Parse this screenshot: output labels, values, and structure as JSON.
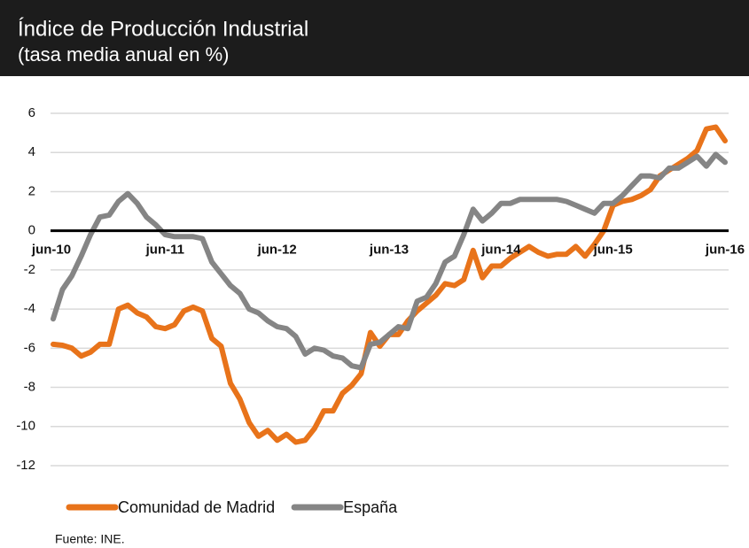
{
  "chart_data": {
    "type": "line",
    "title": "Índice de Producción Industrial",
    "subtitle": "(tasa media anual en %)",
    "source": "Fuente: INE.",
    "categories": [
      "jun-10",
      null,
      null,
      null,
      null,
      null,
      null,
      null,
      null,
      null,
      null,
      null,
      "jun-11",
      null,
      null,
      null,
      null,
      null,
      null,
      null,
      null,
      null,
      null,
      null,
      "jun-12",
      null,
      null,
      null,
      null,
      null,
      null,
      null,
      null,
      null,
      null,
      null,
      "jun-13",
      null,
      null,
      null,
      null,
      null,
      null,
      null,
      null,
      null,
      null,
      null,
      "jun-14",
      null,
      null,
      null,
      null,
      null,
      null,
      null,
      null,
      null,
      null,
      null,
      "jun-15",
      null,
      null,
      null,
      null,
      null,
      null,
      null,
      null,
      null,
      null,
      null,
      "jun-16"
    ],
    "series": [
      {
        "name": "Comunidad de Madrid",
        "color": "#e8731a",
        "values": [
          -5.8,
          -5.85,
          -6.0,
          -6.4,
          -6.2,
          -5.8,
          -5.8,
          -4.0,
          -3.8,
          -4.2,
          -4.4,
          -4.9,
          -5.0,
          -4.8,
          -4.1,
          -3.9,
          -4.1,
          -5.5,
          -5.9,
          -7.8,
          -8.6,
          -9.8,
          -10.5,
          -10.2,
          -10.7,
          -10.4,
          -10.8,
          -10.7,
          -10.1,
          -9.2,
          -9.2,
          -8.3,
          -7.9,
          -7.3,
          -5.2,
          -5.9,
          -5.3,
          -5.3,
          -4.6,
          -4.1,
          -3.7,
          -3.3,
          -2.7,
          -2.8,
          -2.5,
          -1.0,
          -2.4,
          -1.8,
          -1.8,
          -1.4,
          -1.1,
          -0.8,
          -1.1,
          -1.3,
          -1.2,
          -1.2,
          -0.8,
          -1.3,
          -0.7,
          0.0,
          1.3,
          1.5,
          1.6,
          1.8,
          2.1,
          2.8,
          3.1,
          3.4,
          3.7,
          4.1,
          5.2,
          5.3,
          4.6
        ]
      },
      {
        "name": "España",
        "color": "#858585",
        "values": [
          -4.5,
          -3.0,
          -2.3,
          -1.3,
          -0.2,
          0.7,
          0.8,
          1.5,
          1.9,
          1.4,
          0.7,
          0.3,
          -0.2,
          -0.3,
          -0.3,
          -0.3,
          -0.4,
          -1.6,
          -2.2,
          -2.8,
          -3.2,
          -4.0,
          -4.2,
          -4.6,
          -4.9,
          -5.0,
          -5.4,
          -6.3,
          -6.0,
          -6.1,
          -6.4,
          -6.5,
          -6.9,
          -7.0,
          -5.8,
          -5.7,
          -5.3,
          -4.9,
          -5.0,
          -3.6,
          -3.4,
          -2.7,
          -1.6,
          -1.3,
          -0.2,
          1.1,
          0.5,
          0.9,
          1.4,
          1.4,
          1.6,
          1.6,
          1.6,
          1.6,
          1.6,
          1.5,
          1.3,
          1.1,
          0.9,
          1.4,
          1.4,
          1.8,
          2.3,
          2.8,
          2.8,
          2.7,
          3.2,
          3.2,
          3.5,
          3.8,
          3.3,
          3.9,
          3.5
        ]
      }
    ],
    "ylim": [
      -12,
      6
    ],
    "yticks": [
      -12,
      -10,
      -8,
      -6,
      -4,
      -2,
      0,
      2,
      4,
      6
    ],
    "grid": true,
    "legend": "bottom"
  }
}
